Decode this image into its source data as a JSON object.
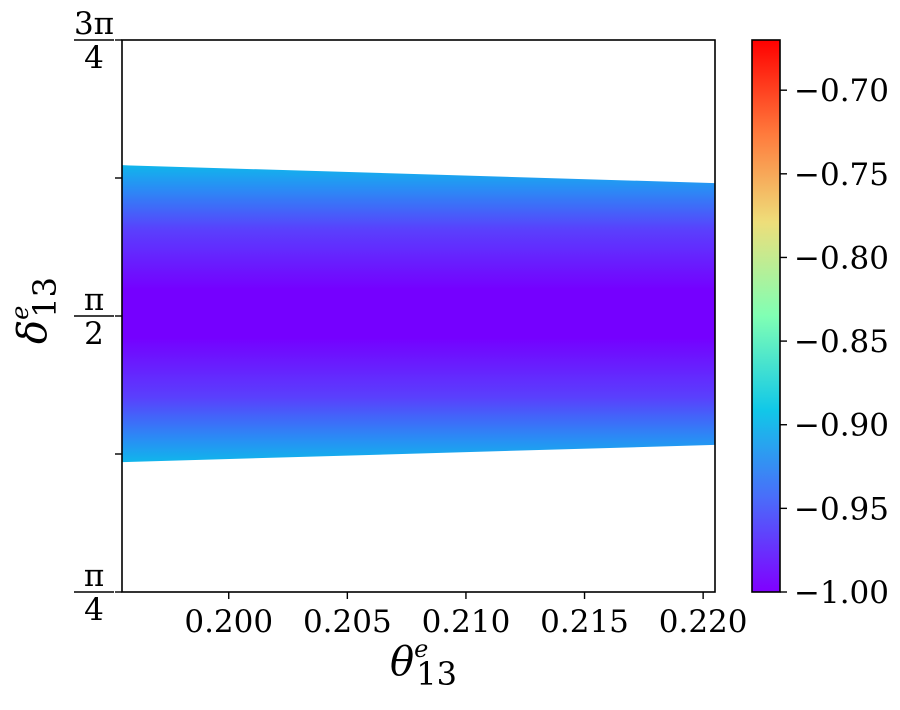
{
  "chart_data": {
    "type": "heatmap",
    "description_colormap": "rainbow",
    "xlabel": {
      "base": "θ",
      "sup": "e",
      "sub": "13"
    },
    "ylabel": {
      "base": "δ",
      "sup": "e",
      "sub": "13"
    },
    "xlim": [
      0.1955,
      0.2205
    ],
    "ylim": [
      0.785398,
      2.356194
    ],
    "x_ticks": [
      {
        "value": 0.2,
        "label": "0.200"
      },
      {
        "value": 0.205,
        "label": "0.205"
      },
      {
        "value": 0.21,
        "label": "0.210"
      },
      {
        "value": 0.215,
        "label": "0.215"
      },
      {
        "value": 0.22,
        "label": "0.220"
      }
    ],
    "y_ticks": [
      {
        "value": 0.785398,
        "num": "π",
        "den": "4"
      },
      {
        "value": 1.178097,
        "num": "",
        "den": ""
      },
      {
        "value": 1.570796,
        "num": "π",
        "den": "2"
      },
      {
        "value": 1.963495,
        "num": "",
        "den": ""
      },
      {
        "value": 2.356194,
        "num": "3π",
        "den": "4"
      }
    ],
    "band": {
      "x": [
        0.1955,
        0.2205
      ],
      "upper": [
        2.0,
        1.949
      ],
      "lower": [
        1.155,
        1.204
      ],
      "center_y": 1.5708
    },
    "colorbar": {
      "range": [
        -1.0,
        -0.67
      ],
      "ticks": [
        {
          "value": -1.0,
          "label": "−1.00"
        },
        {
          "value": -0.95,
          "label": "−0.95"
        },
        {
          "value": -0.9,
          "label": "−0.90"
        },
        {
          "value": -0.85,
          "label": "−0.85"
        },
        {
          "value": -0.8,
          "label": "−0.80"
        },
        {
          "value": -0.75,
          "label": "−0.75"
        },
        {
          "value": -0.7,
          "label": "−0.70"
        }
      ]
    }
  }
}
